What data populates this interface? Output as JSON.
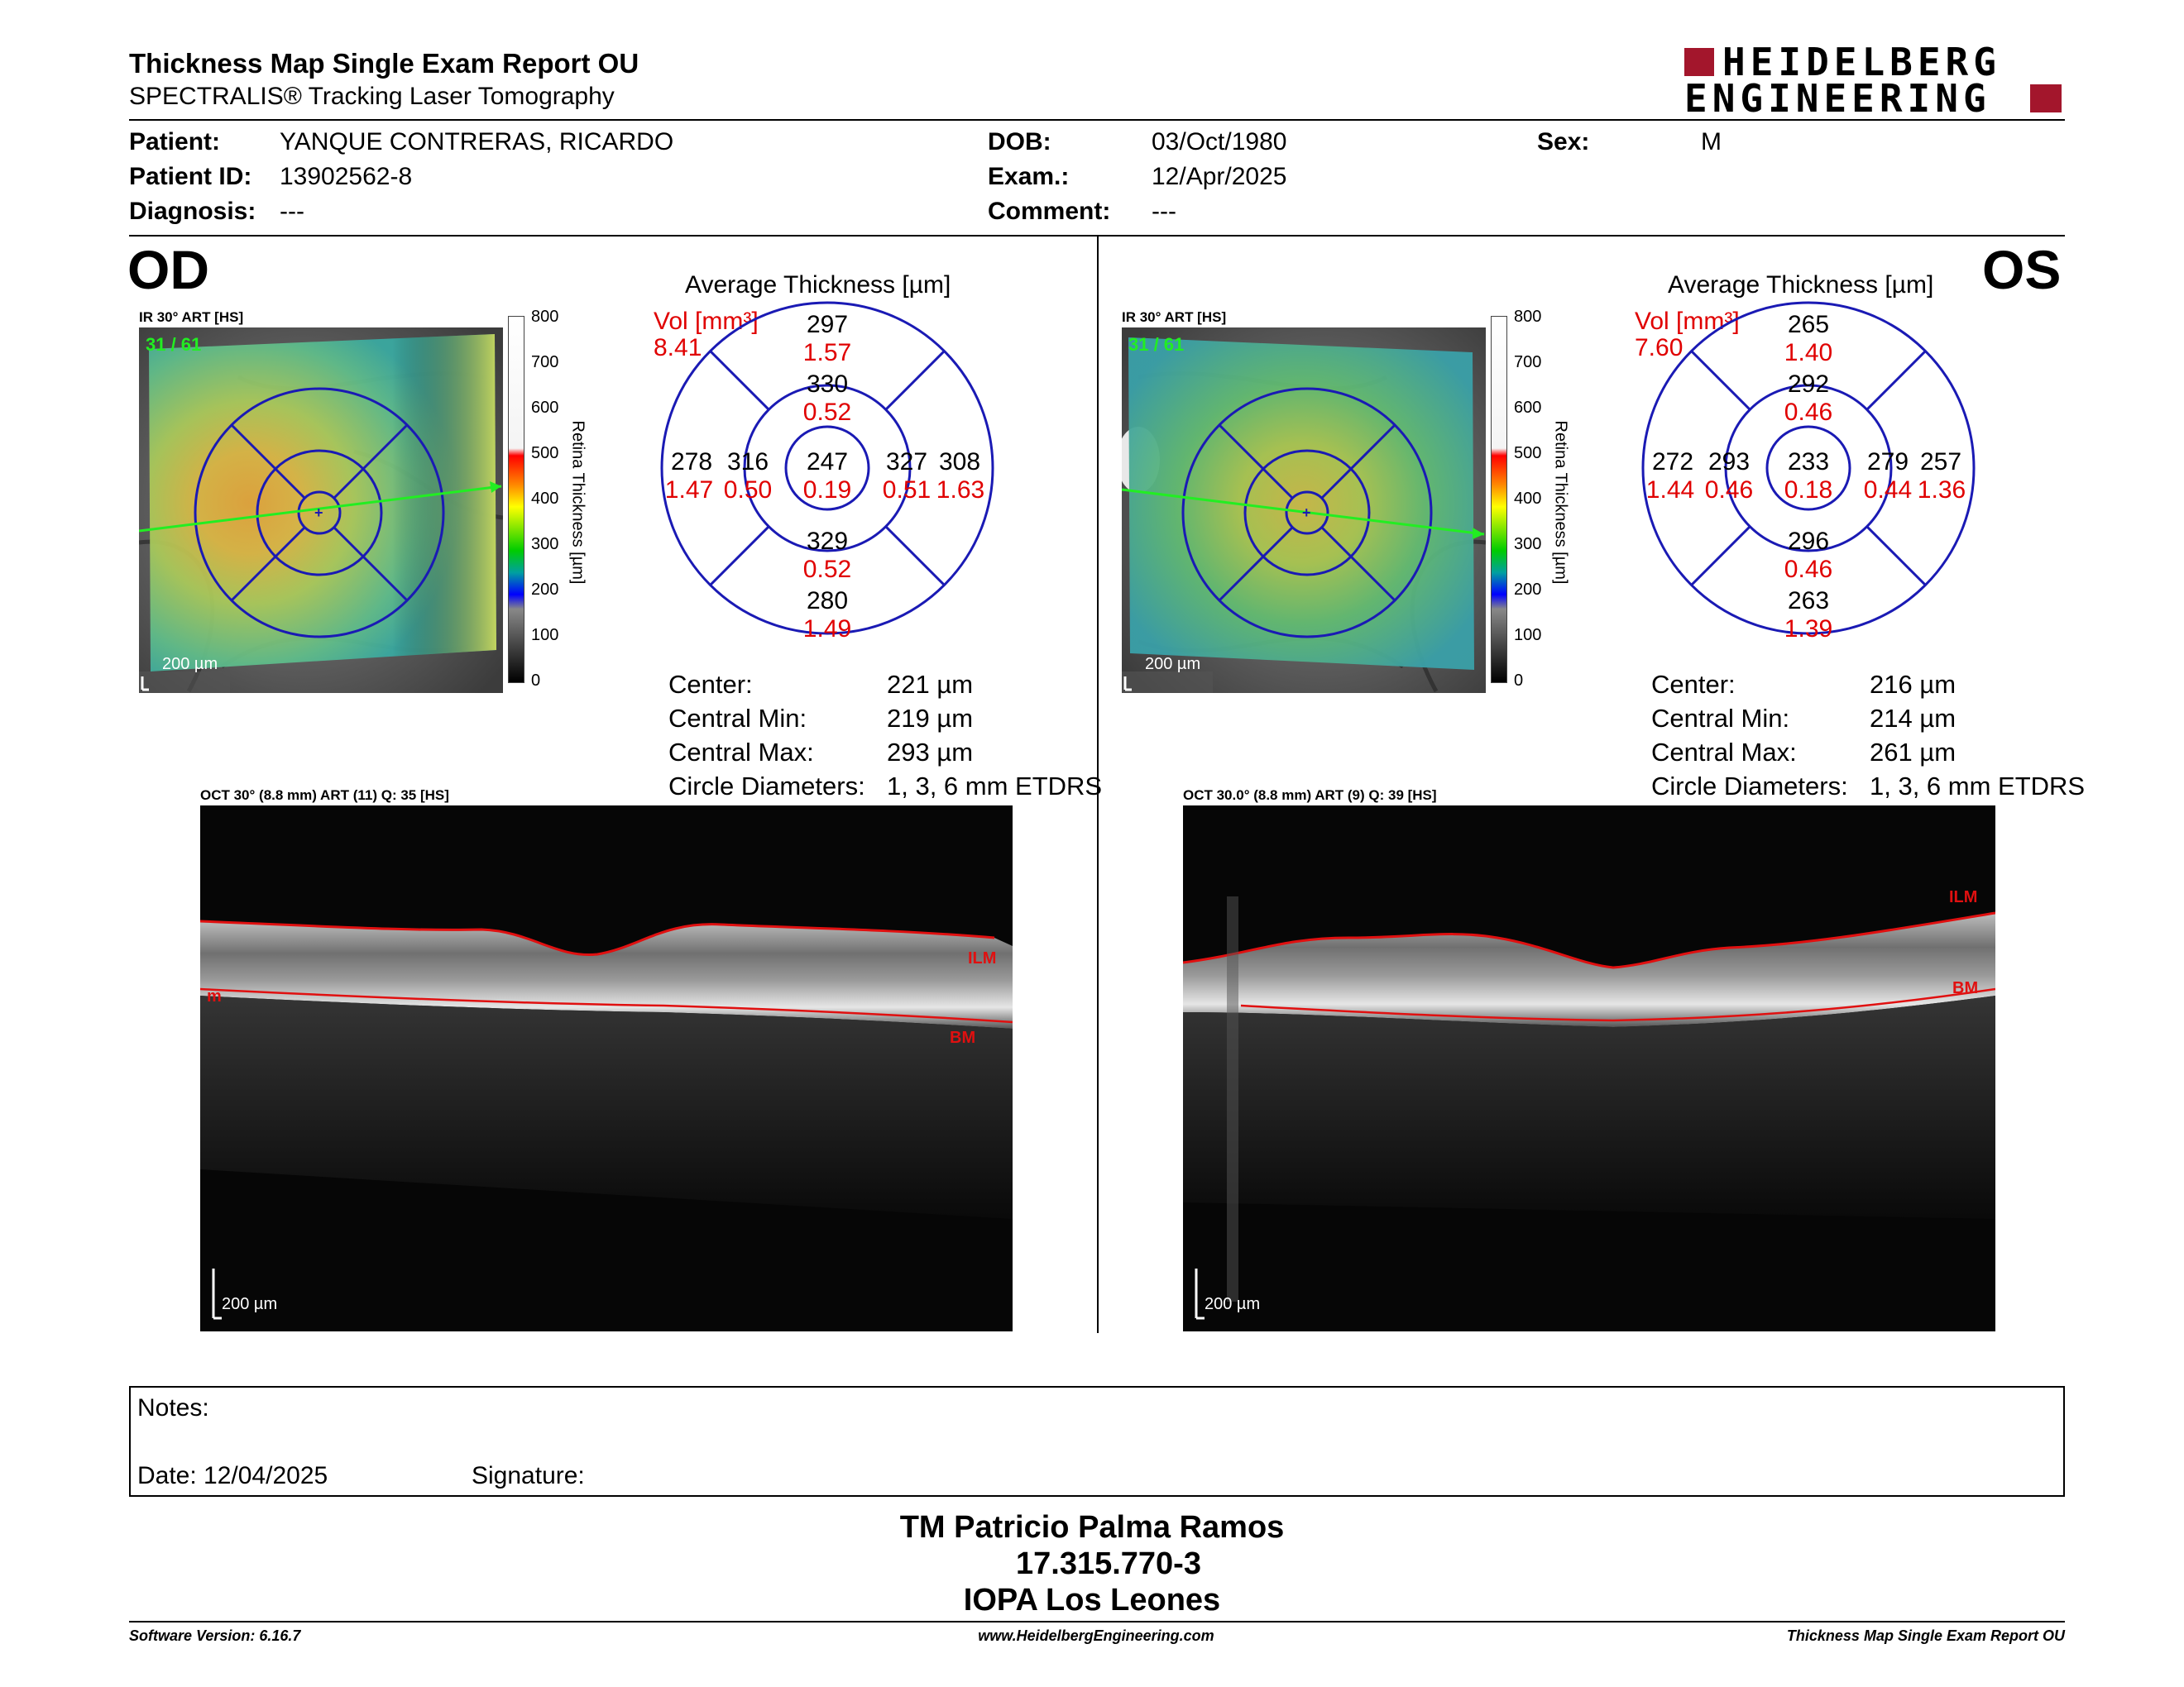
{
  "header": {
    "title": "Thickness Map Single Exam Report OU",
    "subtitle": "SPECTRALIS® Tracking Laser Tomography",
    "logo_line1": "HEIDELBERG",
    "logo_line2": "ENGINEERING"
  },
  "patient": {
    "patient_label": "Patient:",
    "patient_value": "YANQUE CONTRERAS, RICARDO",
    "id_label": "Patient ID:",
    "id_value": "13902562-8",
    "diagnosis_label": "Diagnosis:",
    "diagnosis_value": "---",
    "dob_label": "DOB:",
    "dob_value": "03/Oct/1980",
    "exam_label": "Exam.:",
    "exam_value": "12/Apr/2025",
    "comment_label": "Comment:",
    "comment_value": "---",
    "sex_label": "Sex:",
    "sex_value": "M"
  },
  "od": {
    "eye": "OD",
    "fundus_label": "IR 30° ART [HS]",
    "frames": "31 / 61",
    "scale": "200 µm",
    "colorbar_ticks": [
      "800",
      "700",
      "600",
      "500",
      "400",
      "300",
      "200",
      "100",
      "0"
    ],
    "colorbar_label": "Retina Thickness [µm]",
    "grid_title": "Average Thickness [µm]",
    "vol_label": "Vol [mm³]",
    "vol_value": "8.41",
    "sectors": {
      "center": {
        "t": "247",
        "v": "0.19"
      },
      "inner_top": {
        "t": "330",
        "v": "0.52"
      },
      "inner_bottom": {
        "t": "329",
        "v": "0.52"
      },
      "inner_left": {
        "t": "316",
        "v": "0.50"
      },
      "inner_right": {
        "t": "327",
        "v": "0.51"
      },
      "outer_top": {
        "t": "297",
        "v": "1.57"
      },
      "outer_bottom": {
        "t": "280",
        "v": "1.49"
      },
      "outer_left": {
        "t": "278",
        "v": "1.47"
      },
      "outer_right": {
        "t": "308",
        "v": "1.63"
      }
    },
    "stats": [
      {
        "label": "Center:",
        "value": "221 µm"
      },
      {
        "label": "Central Min:",
        "value": "219 µm"
      },
      {
        "label": "Central Max:",
        "value": "293 µm"
      },
      {
        "label": "Circle Diameters:",
        "value": "1, 3, 6 mm ETDRS"
      }
    ],
    "oct_label": "OCT 30° (8.8 mm) ART (11) Q: 35 [HS]",
    "oct_scale": "200 µm",
    "ilm": "ILM",
    "bm": "BM",
    "m": "m"
  },
  "os": {
    "eye": "OS",
    "fundus_label": "IR 30° ART [HS]",
    "frames": "31 / 61",
    "scale": "200 µm",
    "colorbar_ticks": [
      "800",
      "700",
      "600",
      "500",
      "400",
      "300",
      "200",
      "100",
      "0"
    ],
    "colorbar_label": "Retina Thickness [µm]",
    "grid_title": "Average Thickness [µm]",
    "vol_label": "Vol [mm³]",
    "vol_value": "7.60",
    "sectors": {
      "center": {
        "t": "233",
        "v": "0.18"
      },
      "inner_top": {
        "t": "292",
        "v": "0.46"
      },
      "inner_bottom": {
        "t": "296",
        "v": "0.46"
      },
      "inner_left": {
        "t": "293",
        "v": "0.46"
      },
      "inner_right": {
        "t": "279",
        "v": "0.44"
      },
      "outer_top": {
        "t": "265",
        "v": "1.40"
      },
      "outer_bottom": {
        "t": "263",
        "v": "1.39"
      },
      "outer_left": {
        "t": "272",
        "v": "1.44"
      },
      "outer_right": {
        "t": "257",
        "v": "1.36"
      }
    },
    "stats": [
      {
        "label": "Center:",
        "value": "216 µm"
      },
      {
        "label": "Central Min:",
        "value": "214 µm"
      },
      {
        "label": "Central Max:",
        "value": "261 µm"
      },
      {
        "label": "Circle Diameters:",
        "value": "1, 3, 6 mm ETDRS"
      }
    ],
    "oct_label": "OCT 30.0° (8.8 mm) ART (9) Q: 39 [HS]",
    "oct_scale": "200 µm",
    "ilm": "ILM",
    "bm": "BM"
  },
  "notes": {
    "notes_label": "Notes:",
    "date_label": "Date: 12/04/2025",
    "signature_label": "Signature:"
  },
  "signer": {
    "name": "TM Patricio Palma Ramos",
    "id": "17.315.770-3",
    "org": "IOPA Los Leones"
  },
  "footer": {
    "version": "Software Version: 6.16.7",
    "url": "www.HeidelbergEngineering.com",
    "report": "Thickness Map Single Exam Report OU"
  },
  "colors": {
    "grid_blue": "#1a1ab4",
    "red_value": "#e00000",
    "ilm_red": "#e01010",
    "brand_red": "#a3162c"
  }
}
